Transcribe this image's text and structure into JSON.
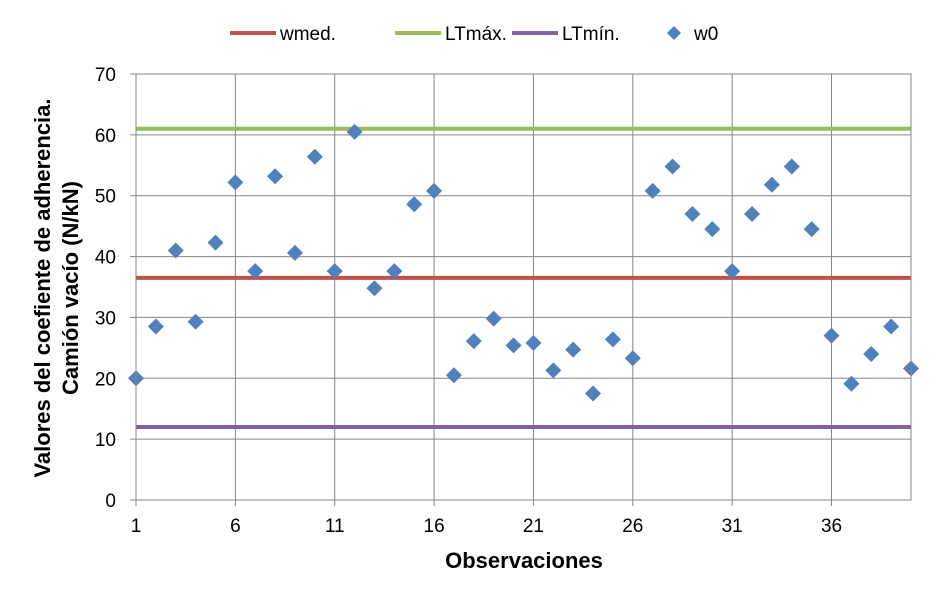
{
  "chart_data": {
    "type": "scatter",
    "xlabel": "Observaciones",
    "ylabel_lines": [
      "Valores del coefiente de adherencia.",
      "Camión vacío (N/kN)"
    ],
    "xlim": [
      1,
      40
    ],
    "ylim": [
      0,
      70
    ],
    "x_ticks": [
      1,
      6,
      11,
      16,
      21,
      26,
      31,
      36
    ],
    "y_ticks": [
      0,
      10,
      20,
      30,
      40,
      50,
      60,
      70
    ],
    "grid": true,
    "legend_position": "top",
    "series": [
      {
        "name": "wmed.",
        "kind": "hline",
        "y": 36.5,
        "color": "#c0504d"
      },
      {
        "name": "LTmáx.",
        "kind": "hline",
        "y": 61,
        "color": "#9bbb59"
      },
      {
        "name": "LTmín.",
        "kind": "hline",
        "y": 12,
        "color": "#8064a2"
      },
      {
        "name": "w0",
        "kind": "points",
        "color": "#4f81bd",
        "x": [
          1,
          2,
          3,
          4,
          5,
          6,
          7,
          8,
          9,
          10,
          11,
          12,
          13,
          14,
          15,
          16,
          17,
          18,
          19,
          20,
          21,
          22,
          23,
          24,
          25,
          26,
          27,
          28,
          29,
          30,
          31,
          32,
          33,
          34,
          35,
          36,
          37,
          38,
          39,
          40
        ],
        "y": [
          20,
          28.5,
          41,
          29.3,
          42.3,
          52.2,
          37.6,
          53.2,
          40.6,
          56.4,
          37.6,
          60.5,
          34.8,
          37.6,
          48.6,
          50.8,
          20.5,
          26.1,
          29.8,
          25.4,
          25.8,
          21.3,
          24.7,
          17.5,
          26.4,
          23.3,
          50.8,
          54.8,
          47,
          44.5,
          37.6,
          47,
          51.8,
          54.8,
          44.5,
          27,
          19.1,
          24,
          28.5,
          21.6
        ]
      }
    ]
  }
}
